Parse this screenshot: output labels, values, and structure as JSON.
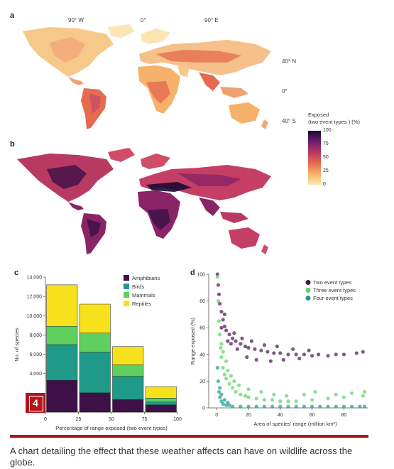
{
  "panels": {
    "a": "a",
    "b": "b",
    "c": "c",
    "d": "d"
  },
  "map": {
    "lon_labels": [
      "90° W",
      "0°",
      "90° E"
    ],
    "lat_labels": [
      "40° N",
      "0°",
      "40° S"
    ],
    "colorbar_title": "Exposed\n(two event types ) (%)",
    "colorbar_ticks": [
      "100",
      "75",
      "50",
      "25",
      "0"
    ]
  },
  "badge": {
    "number": "4"
  },
  "caption": "A chart detailing the effect that these weather affects can have on wildlife across the globe.",
  "colors": {
    "amphibians": "#3d1047",
    "birds": "#1f9a8a",
    "mammals": "#5fcf5f",
    "reptiles": "#f7e11c",
    "two_event": "#4a1250",
    "three_event": "#57d45f",
    "four_event": "#1f9a8a",
    "accent": "#b4141a"
  },
  "chart_data": [
    {
      "type": "bar",
      "stacked": true,
      "categories": [
        "0-25",
        "25-50",
        "50-75",
        "75-100"
      ],
      "x_ticks": [
        "0",
        "25",
        "50",
        "75",
        "100"
      ],
      "xlabel": "Percentage of range exposed (two event types)",
      "ylabel": "No. of species",
      "y_ticks": [
        "4,000",
        "6,000",
        "8,000",
        "10,000",
        "12,000",
        "14,000"
      ],
      "ylim": [
        0,
        14000
      ],
      "series": [
        {
          "name": "Amphibians",
          "values": [
            3300,
            2000,
            1300,
            750
          ]
        },
        {
          "name": "Birds",
          "values": [
            3700,
            4200,
            2400,
            300
          ]
        },
        {
          "name": "Mammals",
          "values": [
            1900,
            2000,
            1200,
            400
          ]
        },
        {
          "name": "Reptiles",
          "values": [
            4300,
            3000,
            1900,
            1200
          ]
        }
      ],
      "legend_position": "top-right"
    },
    {
      "type": "scatter",
      "xlabel": "Area of species' range (million km²)",
      "ylabel": "Range exposed (%)",
      "x_ticks": [
        "0",
        "20",
        "40",
        "60",
        "80"
      ],
      "y_ticks": [
        "0",
        "20",
        "40",
        "60",
        "80",
        "100"
      ],
      "xlim": [
        -5,
        95
      ],
      "ylim": [
        0,
        100
      ],
      "legend_position": "top-right",
      "series": [
        {
          "name": "Two event types",
          "points": [
            [
              0.5,
              100
            ],
            [
              1,
              92
            ],
            [
              1.5,
              85
            ],
            [
              2,
              78
            ],
            [
              3,
              72
            ],
            [
              4,
              66
            ],
            [
              5,
              61
            ],
            [
              6,
              58
            ],
            [
              8,
              55
            ],
            [
              10,
              52
            ],
            [
              12,
              50
            ],
            [
              15,
              48
            ],
            [
              18,
              46
            ],
            [
              20,
              45
            ],
            [
              24,
              44
            ],
            [
              28,
              43
            ],
            [
              32,
              42
            ],
            [
              36,
              41
            ],
            [
              40,
              41
            ],
            [
              45,
              40
            ],
            [
              50,
              40
            ],
            [
              55,
              40
            ],
            [
              60,
              39
            ],
            [
              64,
              40
            ],
            [
              70,
              39
            ],
            [
              75,
              40
            ],
            [
              80,
              40
            ],
            [
              88,
              41
            ],
            [
              92,
              42
            ],
            [
              3,
              60
            ],
            [
              5,
              70
            ],
            [
              7,
              50
            ],
            [
              9,
              48
            ],
            [
              11,
              56
            ],
            [
              13,
              44
            ],
            [
              16,
              52
            ],
            [
              19,
              38
            ],
            [
              22,
              50
            ],
            [
              25,
              36
            ],
            [
              30,
              47
            ],
            [
              34,
              35
            ],
            [
              38,
              46
            ],
            [
              42,
              36
            ],
            [
              48,
              44
            ],
            [
              52,
              37
            ],
            [
              58,
              43
            ]
          ]
        },
        {
          "name": "Three event types",
          "points": [
            [
              0.5,
              98
            ],
            [
              1,
              80
            ],
            [
              1.5,
              65
            ],
            [
              2,
              55
            ],
            [
              2.5,
              45
            ],
            [
              3,
              38
            ],
            [
              4,
              30
            ],
            [
              5,
              25
            ],
            [
              6,
              22
            ],
            [
              8,
              18
            ],
            [
              10,
              15
            ],
            [
              12,
              12
            ],
            [
              15,
              10
            ],
            [
              18,
              9
            ],
            [
              20,
              8
            ],
            [
              25,
              7
            ],
            [
              30,
              6
            ],
            [
              35,
              6
            ],
            [
              40,
              5
            ],
            [
              45,
              5
            ],
            [
              50,
              5
            ],
            [
              60,
              6
            ],
            [
              70,
              7
            ],
            [
              80,
              8
            ],
            [
              92,
              9
            ],
            [
              3,
              48
            ],
            [
              4,
              42
            ],
            [
              6,
              35
            ],
            [
              7,
              28
            ],
            [
              9,
              24
            ],
            [
              11,
              20
            ],
            [
              14,
              17
            ],
            [
              20,
              14
            ],
            [
              28,
              12
            ],
            [
              36,
              10
            ],
            [
              44,
              9
            ],
            [
              55,
              10
            ],
            [
              62,
              12
            ],
            [
              75,
              10
            ],
            [
              85,
              11
            ],
            [
              93,
              12
            ]
          ]
        },
        {
          "name": "Four event types",
          "points": [
            [
              0.5,
              30
            ],
            [
              1,
              20
            ],
            [
              1.5,
              12
            ],
            [
              2,
              8
            ],
            [
              3,
              5
            ],
            [
              4,
              3
            ],
            [
              6,
              2
            ],
            [
              8,
              2
            ],
            [
              10,
              1
            ],
            [
              15,
              1
            ],
            [
              20,
              1
            ],
            [
              25,
              1
            ],
            [
              30,
              1
            ],
            [
              35,
              1
            ],
            [
              40,
              1
            ],
            [
              45,
              1
            ],
            [
              50,
              1
            ],
            [
              55,
              1
            ],
            [
              60,
              1
            ],
            [
              65,
              1
            ],
            [
              70,
              1
            ],
            [
              75,
              1
            ],
            [
              80,
              1
            ],
            [
              85,
              1
            ],
            [
              90,
              1
            ],
            [
              93,
              1
            ],
            [
              2,
              15
            ],
            [
              3,
              10
            ],
            [
              5,
              6
            ],
            [
              7,
              4
            ]
          ]
        }
      ]
    }
  ]
}
